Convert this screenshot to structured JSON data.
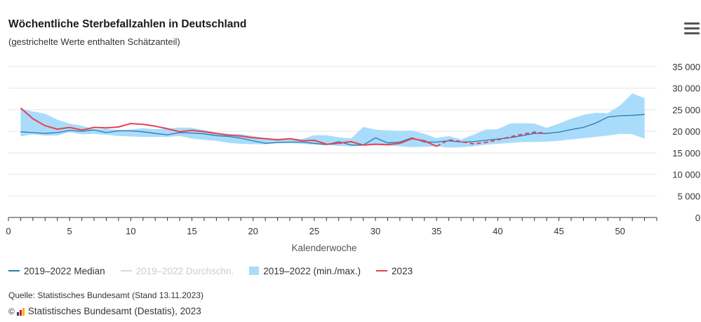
{
  "header": {
    "title": "Wöchentliche Sterbefallzahlen in Deutschland",
    "subtitle": "(gestrichelte Werte enthalten Schätzanteil)",
    "menu_icon": "hamburger-menu-icon"
  },
  "colors": {
    "median": "#2a7ab0",
    "average": "#d9d9d9",
    "range": "#a9dcfb",
    "y2023": "#e8414f",
    "grid": "#e6e6e6",
    "axis": "#333333"
  },
  "legend": {
    "items": [
      {
        "key": "median",
        "label": "2019–2022 Median",
        "hidden": false
      },
      {
        "key": "average",
        "label": "2019–2022 Durchschn.",
        "hidden": true
      },
      {
        "key": "range",
        "label": "2019–2022 (min./max.)",
        "hidden": false
      },
      {
        "key": "y2023",
        "label": "2023",
        "hidden": false
      }
    ]
  },
  "footer": {
    "source": "Quelle: Statistisches Bundesamt (Stand 13.11.2023)",
    "copyright_symbol": "©",
    "copyright": "Statistisches Bundesamt (Destatis), 2023"
  },
  "chart_data": {
    "type": "line",
    "xlabel": "Kalenderwoche",
    "ylabel": "",
    "xlim": [
      0,
      53
    ],
    "ylim": [
      0,
      35000
    ],
    "x_ticks": [
      0,
      5,
      10,
      15,
      20,
      25,
      30,
      35,
      40,
      45,
      50
    ],
    "y_ticks": [
      0,
      5000,
      10000,
      15000,
      20000,
      25000,
      30000,
      35000
    ],
    "y_tick_labels": [
      "0",
      "5 000",
      "10 000",
      "15 000",
      "20 000",
      "25 000",
      "30 000",
      "35 000"
    ],
    "grid": true,
    "legend_position": "bottom",
    "range": {
      "name": "2019–2022 (min./max.)",
      "x": [
        1,
        2,
        3,
        4,
        5,
        6,
        7,
        8,
        9,
        10,
        11,
        12,
        13,
        14,
        15,
        16,
        17,
        18,
        19,
        20,
        21,
        22,
        23,
        24,
        25,
        26,
        27,
        28,
        29,
        30,
        31,
        32,
        33,
        34,
        35,
        36,
        37,
        38,
        39,
        40,
        41,
        42,
        43,
        44,
        45,
        46,
        47,
        48,
        49,
        50,
        51,
        52
      ],
      "min": [
        18800,
        19300,
        19000,
        19000,
        19800,
        19300,
        19400,
        19200,
        18900,
        18800,
        18700,
        18700,
        18700,
        18900,
        18300,
        18000,
        17800,
        17300,
        17100,
        17000,
        17000,
        17200,
        17200,
        17100,
        16900,
        16800,
        16600,
        16500,
        16600,
        16900,
        16700,
        16500,
        16300,
        16400,
        16500,
        16200,
        16300,
        16500,
        16900,
        17100,
        17300,
        17500,
        17500,
        17600,
        17800,
        18100,
        18400,
        18700,
        19000,
        19400,
        19300,
        18300
      ],
      "max": [
        25200,
        24600,
        24100,
        22700,
        21800,
        21300,
        20500,
        20600,
        20300,
        20400,
        20700,
        20500,
        20600,
        20900,
        20800,
        20300,
        19700,
        19400,
        19300,
        18900,
        18400,
        18300,
        18400,
        18200,
        19100,
        19100,
        18600,
        18300,
        21000,
        20400,
        20200,
        20100,
        20200,
        19400,
        18400,
        18900,
        18100,
        19200,
        20400,
        20500,
        21800,
        21900,
        21800,
        20800,
        21800,
        22900,
        23800,
        24300,
        24200,
        26000,
        28800,
        27700
      ]
    },
    "series": [
      {
        "name": "2019–2022 Median",
        "x": [
          1,
          2,
          3,
          4,
          5,
          6,
          7,
          8,
          9,
          10,
          11,
          12,
          13,
          14,
          15,
          16,
          17,
          18,
          19,
          20,
          21,
          22,
          23,
          24,
          25,
          26,
          27,
          28,
          29,
          30,
          31,
          32,
          33,
          34,
          35,
          36,
          37,
          38,
          39,
          40,
          41,
          42,
          43,
          44,
          45,
          46,
          47,
          48,
          49,
          50,
          51,
          52
        ],
        "values": [
          19900,
          19700,
          19500,
          19700,
          20200,
          20000,
          20300,
          19700,
          20100,
          20100,
          19900,
          19500,
          19200,
          19700,
          19600,
          19400,
          19000,
          18800,
          18400,
          17800,
          17200,
          17400,
          17500,
          17500,
          17200,
          16900,
          17600,
          16800,
          16800,
          18500,
          17300,
          17500,
          18500,
          17500,
          17500,
          17800,
          17500,
          17600,
          17900,
          18200,
          18500,
          19000,
          19500,
          19500,
          19800,
          20400,
          20900,
          21900,
          23300,
          23600,
          23700,
          23900
        ]
      },
      {
        "name": "2023",
        "x": [
          1,
          2,
          3,
          4,
          5,
          6,
          7,
          8,
          9,
          10,
          11,
          12,
          13,
          14,
          15,
          16,
          17,
          18,
          19,
          20,
          21,
          22,
          23,
          24,
          25,
          26,
          27,
          28,
          29,
          30,
          31,
          32,
          33,
          34,
          35
        ],
        "values": [
          25400,
          22900,
          21300,
          20500,
          20900,
          20300,
          20900,
          20800,
          21000,
          21800,
          21600,
          21200,
          20600,
          19900,
          20200,
          19900,
          19500,
          19100,
          18900,
          18500,
          18300,
          18000,
          18300,
          17800,
          17900,
          17000,
          17200,
          17600,
          16800,
          17000,
          16900,
          17200,
          18300,
          17800,
          16500
        ]
      },
      {
        "name": "2023 (Schätzanteil)",
        "x": [
          35,
          36,
          37,
          38,
          39,
          40,
          41,
          42,
          43,
          44
        ],
        "values": [
          16500,
          18000,
          17600,
          17100,
          17400,
          18000,
          18700,
          19300,
          19800,
          19500
        ]
      }
    ]
  }
}
